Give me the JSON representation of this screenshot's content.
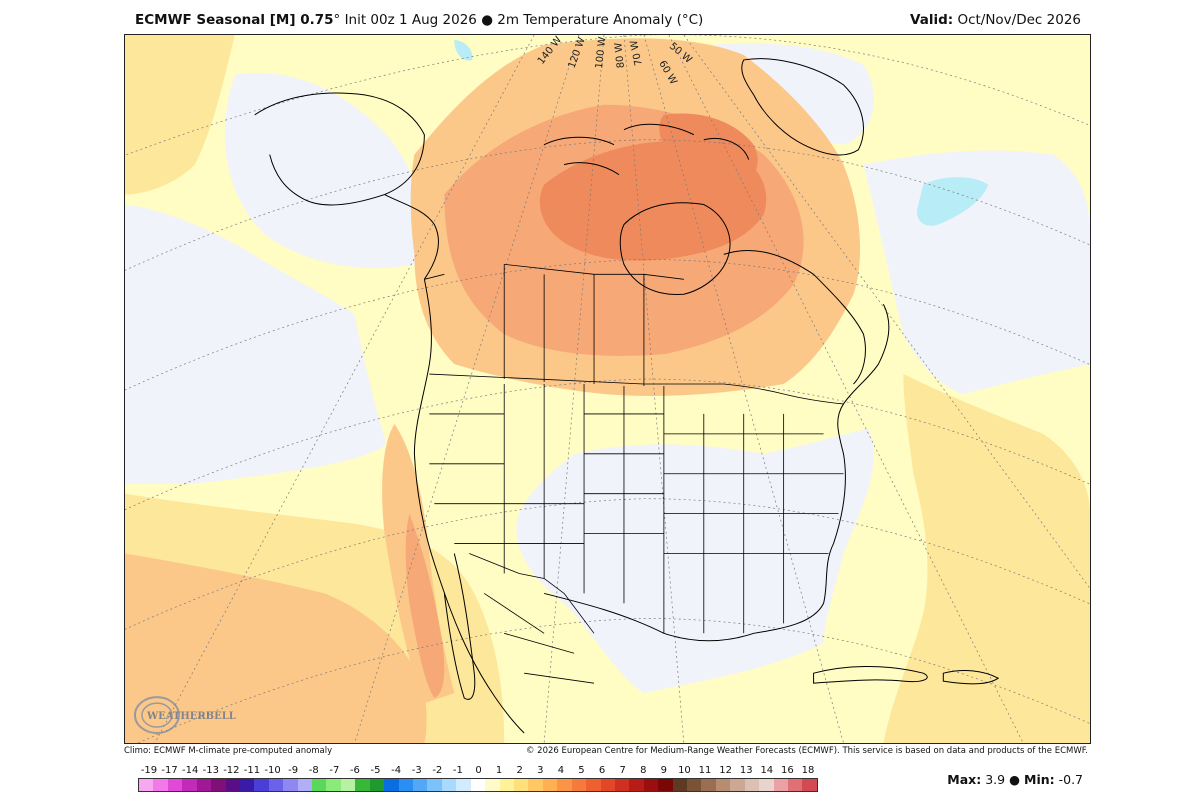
{
  "header": {
    "model": "ECMWF Seasonal [M] 0.75",
    "degree": "°",
    "init": "Init 00z 1 Aug 2026",
    "bullet": "●",
    "field": "2m Temperature Anomaly (°C)",
    "valid_label": "Valid:",
    "valid_value": "Oct/Nov/Dec 2026"
  },
  "map": {
    "longitude_labels": [
      "140 W",
      "120 W",
      "100 W",
      "80 W",
      "70 W",
      "60 W",
      "50 W"
    ],
    "logo_text": "WEATHERBELL"
  },
  "footer": {
    "climo": "Climo: ECMWF M-climate pre-computed anomaly",
    "copyright": "© 2026 European Centre for Medium-Range Weather Forecasts (ECMWF). This service is based on data and products of the ECMWF.",
    "max_label": "Max:",
    "max_value": "3.9",
    "sep": "●",
    "min_label": "Min:",
    "min_value": "-0.7"
  },
  "colorbar": {
    "labels": [
      "-19",
      "-17",
      "-14",
      "-13",
      "-12",
      "-11",
      "-10",
      "-9",
      "-8",
      "-7",
      "-6",
      "-5",
      "-4",
      "-3",
      "-2",
      "-1",
      "0",
      "1",
      "2",
      "3",
      "4",
      "5",
      "6",
      "7",
      "8",
      "9",
      "10",
      "11",
      "12",
      "13",
      "14",
      "16",
      "18"
    ],
    "colors": [
      "#f7a8f0",
      "#f27ae8",
      "#e04ad8",
      "#c42ab8",
      "#a01896",
      "#801078",
      "#5a0e86",
      "#3a1aa8",
      "#4a3ed8",
      "#6a62e8",
      "#8e88f0",
      "#b0aef6",
      "#5ad85a",
      "#8aeb7a",
      "#b6f2a2",
      "#38b838",
      "#1f9a2e",
      "#0a6ee0",
      "#2a8ef2",
      "#52a8f6",
      "#7cc2fa",
      "#a8daff",
      "#d2ecff",
      "#ffffff",
      "#fffbc8",
      "#fff29a",
      "#ffe07a",
      "#ffc864",
      "#ffb050",
      "#fb9446",
      "#f57a3c",
      "#ee6030",
      "#e24828",
      "#cf3020",
      "#b81c16",
      "#9a0e0e",
      "#7a0606",
      "#5e3a22",
      "#7c5236",
      "#9a6e50",
      "#b88c70",
      "#cca894",
      "#dcc0b4",
      "#e8d4cc",
      "#eaa0a4",
      "#e07076",
      "#d24a52"
    ]
  },
  "legend_colors": {
    "near_zero": "#f1f3fb",
    "anom_pale": "#fffcc4",
    "anom_light": "#fde79a",
    "anom_mid": "#fbc889",
    "anom_strong": "#f6a877",
    "anom_max": "#ef8a5c",
    "cold_light": "#b8ecf6"
  }
}
